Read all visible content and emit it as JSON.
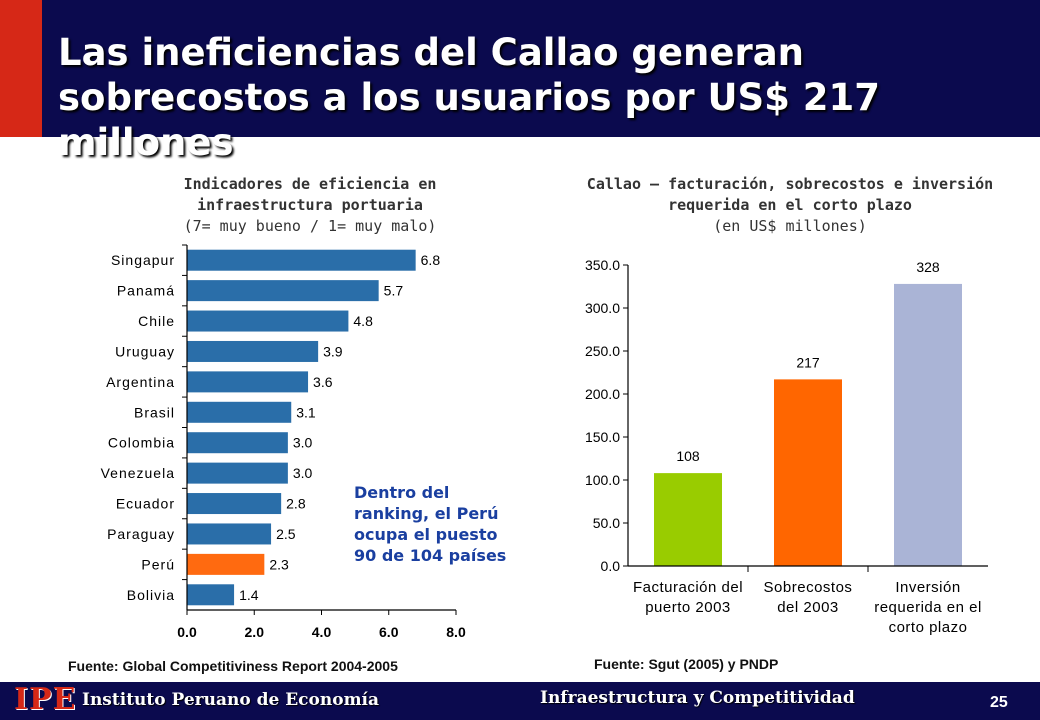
{
  "header": {
    "title": "Las ineficiencias del Callao generan sobrecostos a los usuarios por US$ 217 millones"
  },
  "colors": {
    "navy": "#0b0a4e",
    "red": "#d62817",
    "steel_blue": "#2a6ea9",
    "highlight": "#ff6a10",
    "green": "#99cc00",
    "orange": "#ff6600",
    "lavender": "#aab4d6"
  },
  "chart_data": [
    {
      "type": "bar",
      "orientation": "horizontal",
      "title": "Indicadores de eficiencia en infraestructura portuaria",
      "subtitle": "(7= muy bueno / 1= muy malo)",
      "categories": [
        "Singapur",
        "Panamá",
        "Chile",
        "Uruguay",
        "Argentina",
        "Brasil",
        "Colombia",
        "Venezuela",
        "Ecuador",
        "Paraguay",
        "Perú",
        "Bolivia"
      ],
      "values": [
        6.8,
        5.7,
        4.8,
        3.9,
        3.6,
        3.1,
        3.0,
        3.0,
        2.8,
        2.5,
        2.3,
        1.4
      ],
      "value_labels": [
        "6.8",
        "5.7",
        "4.8",
        "3.9",
        "3.6",
        "3.1",
        "3.0",
        "3.0",
        "2.8",
        "2.5",
        "2.3",
        "1.4"
      ],
      "highlight": "Perú",
      "xlim": [
        0,
        8
      ],
      "xticks": [
        "0.0",
        "2.0",
        "4.0",
        "6.0",
        "8.0"
      ],
      "source": "Fuente: Global Competitiviness Report 2004-2005"
    },
    {
      "type": "bar",
      "title": "Callao – facturación, sobrecostos e inversión requerida en el corto plazo",
      "subtitle": "(en US$ millones)",
      "categories": [
        [
          "Facturación del",
          "puerto 2003"
        ],
        [
          "Sobrecostos",
          "del 2003"
        ],
        [
          "Inversión",
          "requerida en el",
          "corto plazo"
        ]
      ],
      "values": [
        108,
        217,
        328
      ],
      "value_labels": [
        "108",
        "217",
        "328"
      ],
      "ylim": [
        0,
        350
      ],
      "yticks": [
        "0.0",
        "50.0",
        "100.0",
        "150.0",
        "200.0",
        "250.0",
        "300.0",
        "350.0"
      ],
      "source": "Fuente: Sgut (2005) y PNDP"
    }
  ],
  "annotation": {
    "text": "Dentro del ranking, el Perú ocupa el puesto 90 de 104 países"
  },
  "footer": {
    "logo": "IPE",
    "institute": "Instituto Peruano de Economía",
    "section": "Infraestructura y Competitividad",
    "page": "25"
  }
}
